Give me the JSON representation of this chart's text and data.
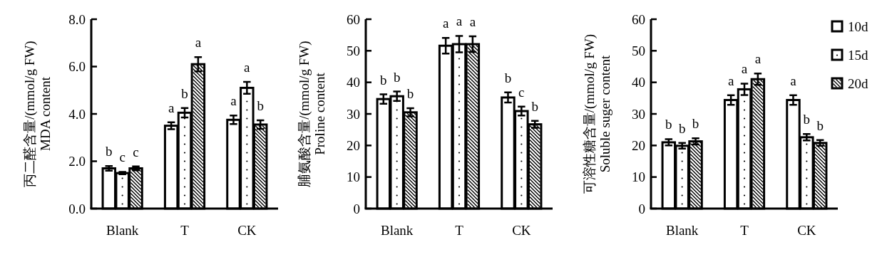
{
  "chart_data": [
    {
      "type": "bar",
      "ylabel": "丙二醛含量/(mmol/g FW)\nMDA content",
      "categories": [
        "Blank",
        "T",
        "CK"
      ],
      "ylim": [
        0,
        8
      ],
      "yticks": [
        {
          "value": 0,
          "label": "0.0"
        },
        {
          "value": 2,
          "label": "2.0"
        },
        {
          "value": 4,
          "label": "4.0"
        },
        {
          "value": 6,
          "label": "6.0"
        },
        {
          "value": 8,
          "label": "8.0"
        }
      ],
      "series": [
        {
          "color": "#ffffff",
          "values": [
            1.7,
            3.5,
            3.75
          ],
          "errors": [
            0.1,
            0.15,
            0.18
          ],
          "value_labels": [
            "b",
            "a",
            "a"
          ]
        },
        {
          "color": "#ffffff",
          "values": [
            1.5,
            4.05,
            5.1
          ],
          "errors": [
            0.05,
            0.2,
            0.25
          ],
          "value_labels": [
            "c",
            "b",
            "a"
          ]
        },
        {
          "color": "#ffffff",
          "values": [
            1.7,
            6.1,
            3.55
          ],
          "errors": [
            0.08,
            0.3,
            0.18
          ],
          "value_labels": [
            "c",
            "a",
            "b"
          ]
        }
      ],
      "legend": false
    },
    {
      "type": "bar",
      "ylabel": "脯氨酸含量/(mmol/g FW)\nProline content",
      "categories": [
        "Blank",
        "T",
        "CK"
      ],
      "ylim": [
        0,
        60
      ],
      "yticks": [
        0,
        10,
        20,
        30,
        40,
        50,
        60
      ],
      "series": [
        {
          "color": "#ffffff",
          "values": [
            34.7,
            51.6,
            35.2
          ],
          "errors": [
            1.5,
            2.5,
            1.6
          ],
          "value_labels": [
            "b",
            "a",
            "b"
          ]
        },
        {
          "color": "#ffffff",
          "values": [
            35.6,
            52.1,
            30.9
          ],
          "errors": [
            1.5,
            2.6,
            1.4
          ],
          "value_labels": [
            "b",
            "a",
            "c"
          ]
        },
        {
          "color": "#ffffff",
          "values": [
            30.5,
            52.1,
            26.7
          ],
          "errors": [
            1.3,
            2.5,
            1.1
          ],
          "value_labels": [
            "b",
            "a",
            "b"
          ]
        }
      ],
      "legend": false
    },
    {
      "type": "bar",
      "ylabel": "可溶性糖含量/(mmol/g FW)\nSoluble suger content",
      "categories": [
        "Blank",
        "T",
        "CK"
      ],
      "ylim": [
        0,
        60
      ],
      "yticks": [
        0,
        10,
        20,
        30,
        40,
        50,
        60
      ],
      "series": [
        {
          "name": "10d",
          "color": "#ffffff",
          "values": [
            21.0,
            34.4,
            34.4
          ],
          "errors": [
            1.0,
            1.5,
            1.5
          ],
          "value_labels": [
            "b",
            "a",
            "a"
          ]
        },
        {
          "name": "15d",
          "color": "#ffffff",
          "values": [
            19.9,
            37.8,
            22.6
          ],
          "errors": [
            0.9,
            1.8,
            1.0
          ],
          "value_labels": [
            "b",
            "a",
            "b"
          ]
        },
        {
          "name": "20d",
          "color": "#ffffff",
          "values": [
            21.3,
            41.0,
            20.8
          ],
          "errors": [
            1.0,
            1.8,
            0.9
          ],
          "value_labels": [
            "b",
            "a",
            "b"
          ]
        }
      ],
      "legend": "top right"
    }
  ]
}
